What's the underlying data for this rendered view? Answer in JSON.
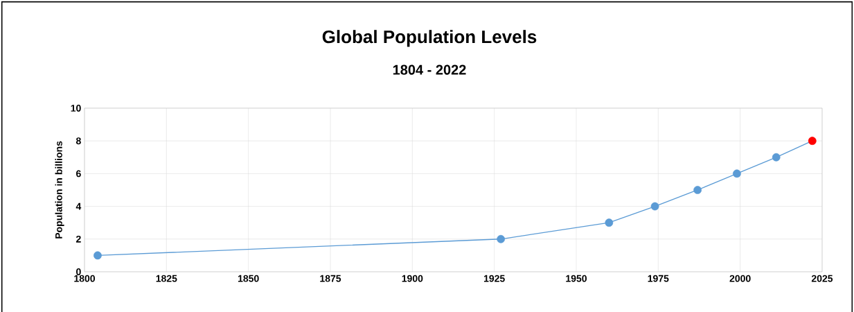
{
  "chart_data": {
    "type": "line",
    "title": "Global Population Levels",
    "subtitle": "1804 - 2022",
    "ylabel": "Population in billions",
    "x": [
      1804,
      1927,
      1960,
      1974,
      1987,
      1999,
      2011,
      2022
    ],
    "values": [
      1,
      2,
      3,
      4,
      5,
      6,
      7,
      8
    ],
    "color": "#5b9bd5",
    "colors": [
      "#5b9bd5",
      "#5b9bd5",
      "#5b9bd5",
      "#5b9bd5",
      "#5b9bd5",
      "#5b9bd5",
      "#5b9bd5",
      "#ff0000"
    ],
    "marker": "circle",
    "line_style": "solid",
    "xlim": [
      1800,
      2025
    ],
    "xticks": [
      1800,
      1825,
      1850,
      1875,
      1900,
      1925,
      1950,
      1975,
      2000,
      2025
    ],
    "ylim": [
      0,
      10
    ],
    "yticks": [
      0,
      2,
      4,
      6,
      8,
      10
    ],
    "grid": true
  }
}
